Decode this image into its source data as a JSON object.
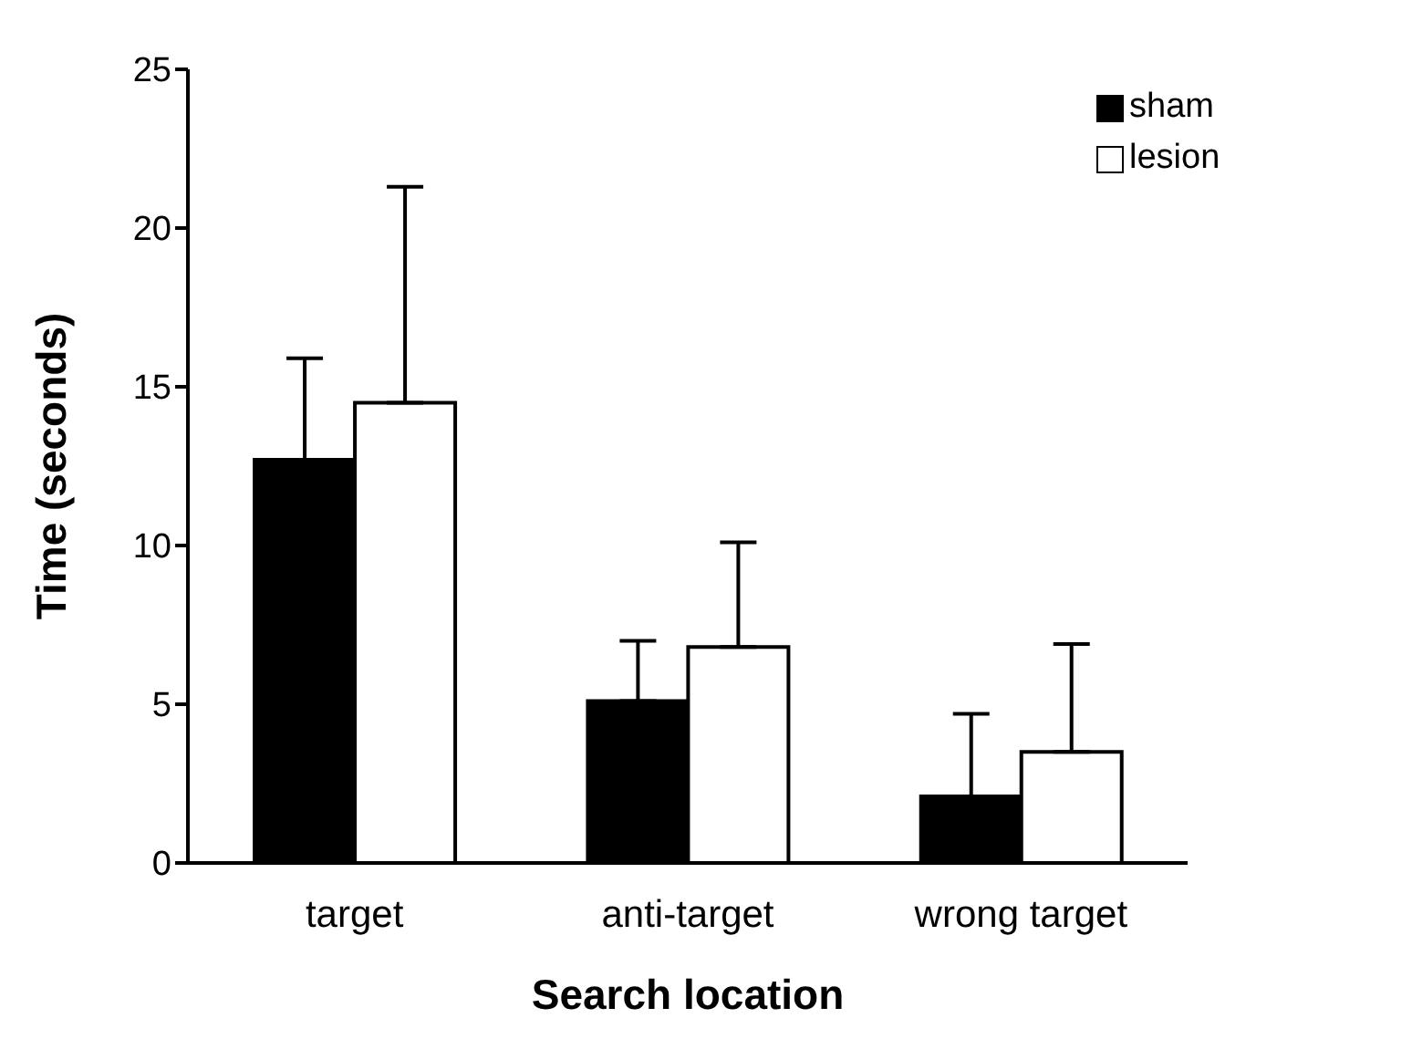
{
  "chart_data": {
    "type": "bar",
    "xlabel": "Search location",
    "ylabel": "Time (seconds)",
    "categories": [
      "target",
      "anti-target",
      "wrong target"
    ],
    "series": [
      {
        "name": "sham",
        "color": "#000000",
        "values": [
          12.7,
          5.1,
          2.1
        ],
        "errors": [
          [
            12.7,
            15.9
          ],
          [
            5.1,
            7.0
          ],
          [
            2.1,
            4.7
          ]
        ]
      },
      {
        "name": "lesion",
        "color": "#ffffff",
        "values": [
          14.5,
          6.8,
          3.5
        ],
        "errors": [
          [
            14.5,
            21.3
          ],
          [
            6.8,
            10.1
          ],
          [
            3.5,
            6.9
          ]
        ]
      }
    ],
    "ylim": [
      0,
      25
    ],
    "yticks": [
      0,
      5,
      10,
      15,
      20,
      25
    ],
    "grid": false,
    "legend": "top right"
  }
}
